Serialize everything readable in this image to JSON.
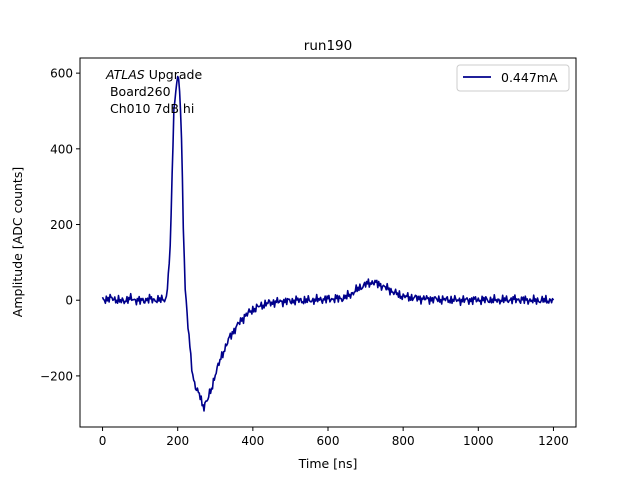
{
  "chart_data": {
    "type": "line",
    "title": "run190",
    "xlabel": "Time [ns]",
    "ylabel": "Amplitude [ADC counts]",
    "xlim": [
      -60,
      1260
    ],
    "ylim": [
      -335,
      640
    ],
    "xticks": [
      0,
      200,
      400,
      600,
      800,
      1000,
      1200
    ],
    "yticks": [
      -200,
      0,
      200,
      400,
      600
    ],
    "ytick_labels": [
      "−200",
      "0",
      "200",
      "400",
      "600"
    ],
    "grid": false,
    "legend_position": "top-right",
    "annotation": {
      "line1_italic": "ATLAS",
      "line1_rest": " Upgrade",
      "line2": " Board260",
      "line3": " Ch010 7dB hi"
    },
    "series": [
      {
        "name": "0.447mA",
        "color": "#00008b",
        "x": [
          0,
          25,
          50,
          75,
          100,
          125,
          150,
          170,
          180,
          185,
          190,
          195,
          200,
          205,
          210,
          215,
          220,
          230,
          240,
          250,
          260,
          265,
          270,
          275,
          280,
          290,
          300,
          320,
          340,
          360,
          380,
          400,
          420,
          440,
          460,
          480,
          500,
          520,
          540,
          560,
          580,
          600,
          620,
          640,
          660,
          680,
          700,
          720,
          740,
          760,
          780,
          800,
          850,
          900,
          950,
          1000,
          1050,
          1100,
          1150,
          1200
        ],
        "y": [
          2,
          5,
          -3,
          4,
          -2,
          3,
          0,
          5,
          130,
          330,
          500,
          560,
          590,
          560,
          430,
          200,
          30,
          -100,
          -200,
          -235,
          -255,
          -275,
          -280,
          -268,
          -262,
          -235,
          -195,
          -140,
          -95,
          -65,
          -40,
          -25,
          -15,
          -8,
          -5,
          -3,
          -2,
          0,
          -1,
          0,
          2,
          3,
          4,
          5,
          15,
          30,
          42,
          48,
          40,
          30,
          18,
          10,
          4,
          2,
          0,
          1,
          0,
          2,
          -1,
          0
        ]
      }
    ]
  }
}
